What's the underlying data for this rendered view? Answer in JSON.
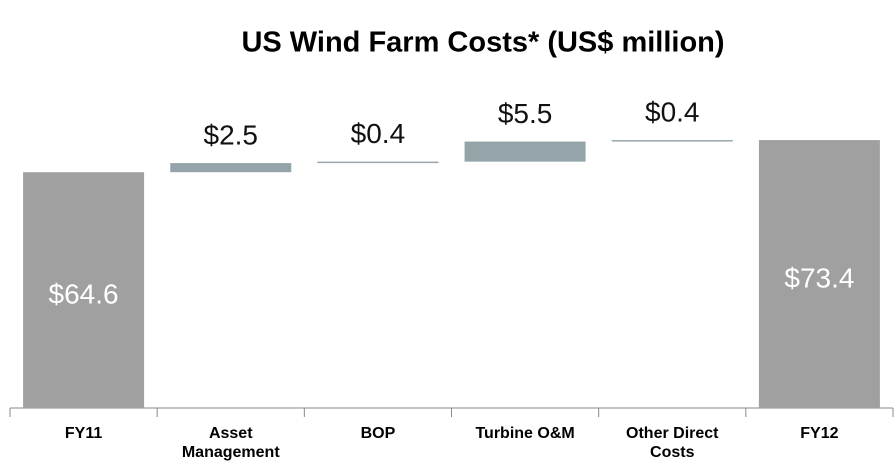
{
  "chart_data": {
    "type": "waterfall",
    "title": "US Wind Farm Costs* (US$ million)",
    "categories": [
      "FY11",
      "Asset Management",
      "BOP",
      "Turbine O&M",
      "Other Direct Costs",
      "FY12"
    ],
    "values": [
      64.6,
      2.5,
      0.4,
      5.5,
      0.4,
      73.4
    ],
    "value_labels": [
      "$64.6",
      "$2.5",
      "$0.4",
      "$5.5",
      "$0.4",
      "$73.4"
    ],
    "measure": [
      "absolute",
      "relative",
      "relative",
      "relative",
      "relative",
      "total"
    ],
    "total_color": "#a0a0a0",
    "increase_color": "#94a4a8",
    "ylim": [
      0,
      80
    ]
  }
}
